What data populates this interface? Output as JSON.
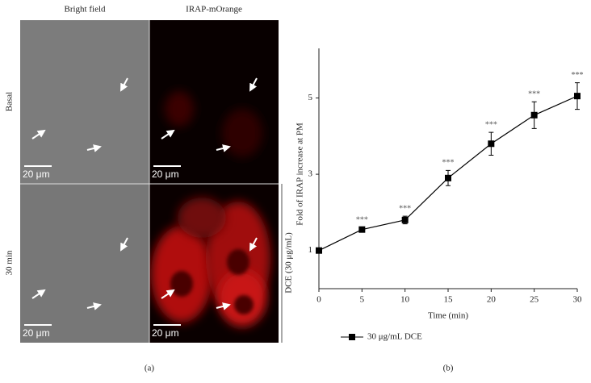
{
  "panel_a": {
    "columns": [
      "Bright field",
      "IRAP-mOrange"
    ],
    "rows": [
      "Basal",
      "30 min"
    ],
    "scale_bars": [
      "20 μm",
      "20 μm",
      "20 μm",
      "20 μm"
    ],
    "treatment": "DCE (30 μg/mL)",
    "caption": "(a)"
  },
  "chart_data": {
    "type": "line",
    "caption": "(b)",
    "x_label": "Time (min)",
    "y_label": "Fold of IRAP increase at PM",
    "x": [
      0,
      5,
      10,
      15,
      20,
      25,
      30
    ],
    "series": [
      {
        "name": "30 μg/mL DCE",
        "color": "#000000",
        "values": [
          1,
          1.55,
          1.8,
          2.9,
          3.8,
          4.55,
          5.05
        ],
        "errors": [
          0.03,
          0.05,
          0.1,
          0.2,
          0.3,
          0.35,
          0.35
        ],
        "annotations": [
          null,
          "***",
          "***",
          "***",
          "***",
          "***",
          "***"
        ]
      }
    ],
    "xlim": [
      0,
      30
    ],
    "xticks": [
      0,
      5,
      10,
      15,
      20,
      25,
      30
    ],
    "ylim": [
      0,
      6.3
    ],
    "yticks": [
      1,
      3,
      5
    ],
    "legend": "bottom-left"
  }
}
